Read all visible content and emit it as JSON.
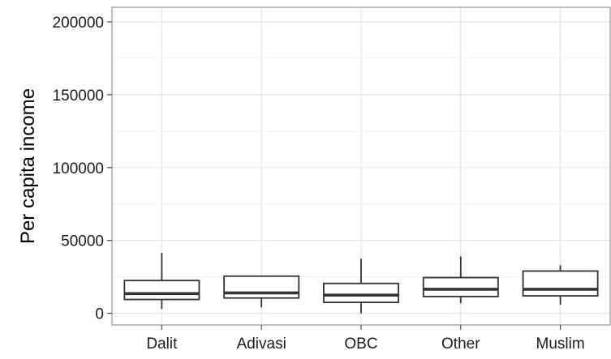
{
  "chart_data": {
    "type": "boxplot",
    "title": "",
    "xlabel": "",
    "ylabel": "Per capita income",
    "ylim": [
      -8000,
      210000
    ],
    "y_ticks": [
      0,
      50000,
      100000,
      150000,
      200000
    ],
    "y_tick_labels": [
      "0",
      "50000",
      "100000",
      "150000",
      "200000"
    ],
    "categories": [
      "Dalit",
      "Adivasi",
      "OBC",
      "Other",
      "Muslim"
    ],
    "boxes": [
      {
        "category": "Dalit",
        "whisker_low": 3000,
        "q1": 9500,
        "median": 13500,
        "q3": 22500,
        "whisker_high": 41500
      },
      {
        "category": "Adivasi",
        "whisker_low": 4000,
        "q1": 10500,
        "median": 14000,
        "q3": 25500,
        "whisker_high": 25500
      },
      {
        "category": "OBC",
        "whisker_low": 0,
        "q1": 7500,
        "median": 12500,
        "q3": 20500,
        "whisker_high": 37500
      },
      {
        "category": "Other",
        "whisker_low": 7000,
        "q1": 11500,
        "median": 16500,
        "q3": 24500,
        "whisker_high": 39000
      },
      {
        "category": "Muslim",
        "whisker_low": 6000,
        "q1": 12000,
        "median": 16500,
        "q3": 29000,
        "whisker_high": 33000
      }
    ],
    "grid": true,
    "legend": "none",
    "colors": {
      "panel_border": "#7f7f7f",
      "grid_major": "#e5e5e5",
      "grid_minor": "#f2f2f2",
      "box_line": "#333333",
      "box_fill": "#ffffff",
      "tick": "#4d4d4d"
    }
  }
}
